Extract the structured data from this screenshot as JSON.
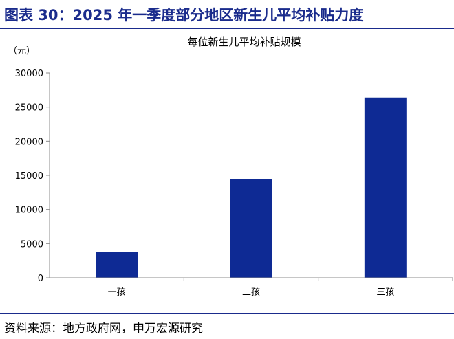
{
  "header": {
    "title": "图表 30：2025 年一季度部分地区新生儿平均补贴力度"
  },
  "footer": {
    "source": "资料来源：地方政府网，申万宏源研究"
  },
  "colors": {
    "accent": "#1a2b8c",
    "bar": "#0e2a94",
    "axis": "#8c8c8c"
  },
  "chart_data": {
    "type": "bar",
    "title": "每位新生儿平均补贴规模",
    "unit_label": "（元）",
    "xlabel": "",
    "ylabel": "",
    "categories": [
      "一孩",
      "二孩",
      "三孩"
    ],
    "values": [
      3800,
      14400,
      26400
    ],
    "ylim": [
      0,
      30000
    ],
    "yticks": [
      0,
      5000,
      10000,
      15000,
      20000,
      25000,
      30000
    ],
    "grid": false,
    "legend": "none"
  }
}
